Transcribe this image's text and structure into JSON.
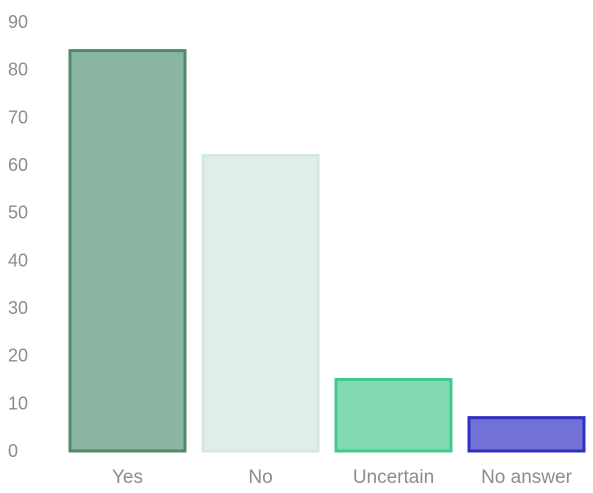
{
  "chart_data": {
    "type": "bar",
    "title": "",
    "xlabel": "",
    "ylabel": "",
    "categories": [
      "Yes",
      "No",
      "Uncertain",
      "No answer"
    ],
    "values": [
      84,
      62,
      15,
      7
    ],
    "ylim": [
      0,
      90
    ],
    "yticks": [
      0,
      10,
      20,
      30,
      40,
      50,
      60,
      70,
      80,
      90
    ],
    "grid": false,
    "legend": "none",
    "bar_fill_colors": [
      "#8ab5a0",
      "#dfeee8",
      "#82dab5",
      "#7272d6"
    ],
    "bar_border_colors": [
      "#4f8a6b",
      "#d3e8df",
      "#45c791",
      "#2f2fc0"
    ]
  }
}
